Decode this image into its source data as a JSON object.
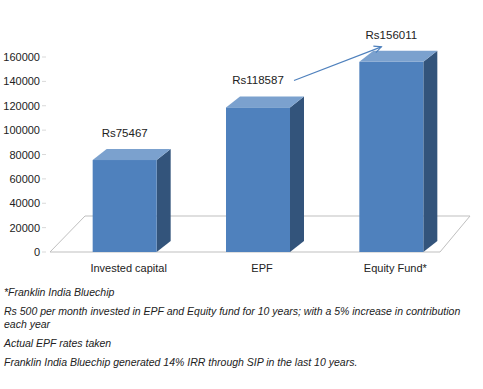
{
  "chart_data": {
    "type": "bar",
    "categories": [
      "Invested capital",
      "EPF",
      "Equity Fund*"
    ],
    "values": [
      75467,
      118587,
      156011
    ],
    "value_labels": [
      "Rs75467",
      "Rs118587",
      "Rs156011"
    ],
    "color": "#4f81bd",
    "ylim": [
      0,
      160000
    ],
    "yticks": [
      0,
      20000,
      40000,
      60000,
      80000,
      100000,
      120000,
      140000,
      160000
    ],
    "grid": false,
    "data_labels": true,
    "annotations": [
      "*Franklin India Bluechip",
      "Rs 500 per month invested in EPF and Equity fund for 10 years; with a 5% increase in contribution each year",
      "Actual EPF rates taken",
      "Franklin India Bluechip generated 14% IRR through SIP in the last 10 years."
    ]
  }
}
